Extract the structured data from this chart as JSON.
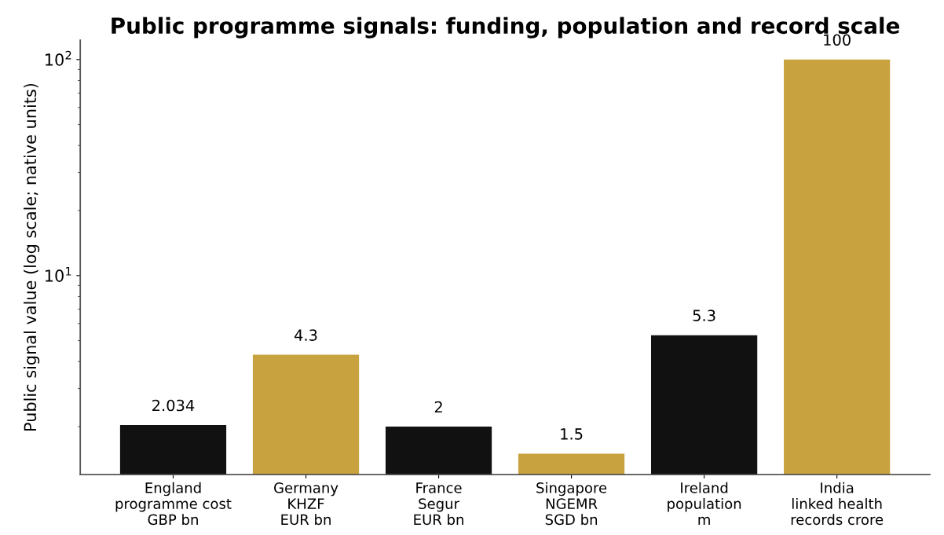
{
  "chart_data": {
    "type": "bar",
    "title": "Public programme signals: funding, population and record scale",
    "ylabel": "Public signal value (log scale; native units)",
    "categories": [
      "England\nprogramme cost\nGBP bn",
      "Germany\nKHZF\nEUR bn",
      "France\nSegur\nEUR bn",
      "Singapore\nNGEMR\nSGD bn",
      "Ireland\npopulation\nm",
      "India\nlinked health\nrecords crore"
    ],
    "values": [
      2.034,
      4.3,
      2,
      1.5,
      5.3,
      100
    ],
    "colors": [
      "#111111",
      "#c8a23f",
      "#111111",
      "#c8a23f",
      "#111111",
      "#c8a23f"
    ],
    "log": true,
    "ylim": [
      1.2,
      123
    ],
    "yticks": [
      {
        "value": 10,
        "label": "10$^{1}$"
      },
      {
        "value": 100,
        "label": "10$^{2}$"
      }
    ],
    "data_labels": true,
    "grid": false
  }
}
